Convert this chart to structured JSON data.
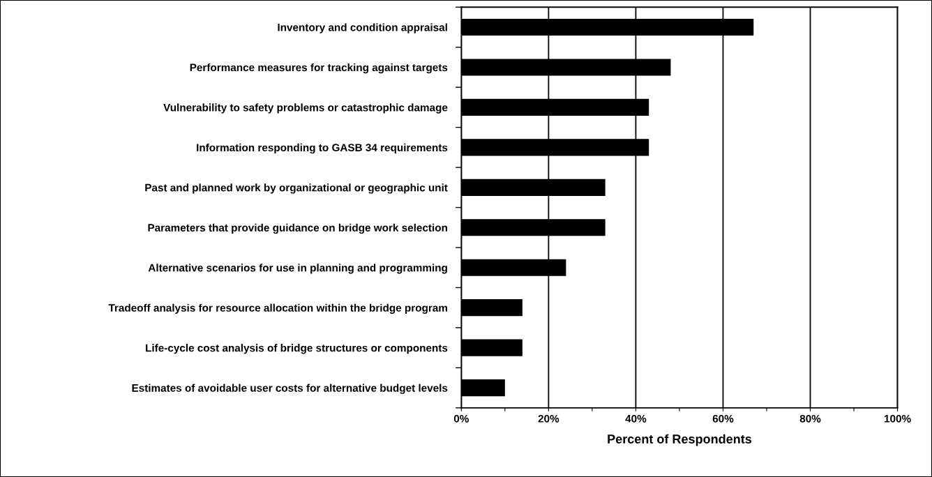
{
  "chart_data": {
    "type": "bar",
    "orientation": "horizontal",
    "xlabel": "Percent of Respondents",
    "categories": [
      "Inventory and condition appraisal",
      "Performance measures for tracking against targets",
      "Vulnerability to safety problems or catastrophic damage",
      "Information responding to GASB 34 requirements",
      "Past and planned work by organizational or geographic unit",
      "Parameters that provide guidance on bridge work selection",
      "Alternative scenarios for use in planning and programming",
      "Tradeoff analysis for resource allocation within the bridge program",
      "Life-cycle cost analysis of bridge structures or components",
      "Estimates of avoidable user costs for alternative budget levels"
    ],
    "values": [
      67,
      48,
      43,
      43,
      33,
      33,
      24,
      14,
      14,
      10
    ],
    "color": "#000000",
    "xlim": [
      0,
      100
    ],
    "xticks": [
      {
        "value": 0,
        "label": "0%"
      },
      {
        "value": 10,
        "label": null
      },
      {
        "value": 20,
        "label": "20%"
      },
      {
        "value": 30,
        "label": null
      },
      {
        "value": 40,
        "label": "40%"
      },
      {
        "value": 50,
        "label": null
      },
      {
        "value": 60,
        "label": "60%"
      },
      {
        "value": 70,
        "label": null
      },
      {
        "value": 80,
        "label": "80%"
      },
      {
        "value": 90,
        "label": null
      },
      {
        "value": 100,
        "label": "100%"
      }
    ],
    "grid": "x",
    "legend": false
  }
}
